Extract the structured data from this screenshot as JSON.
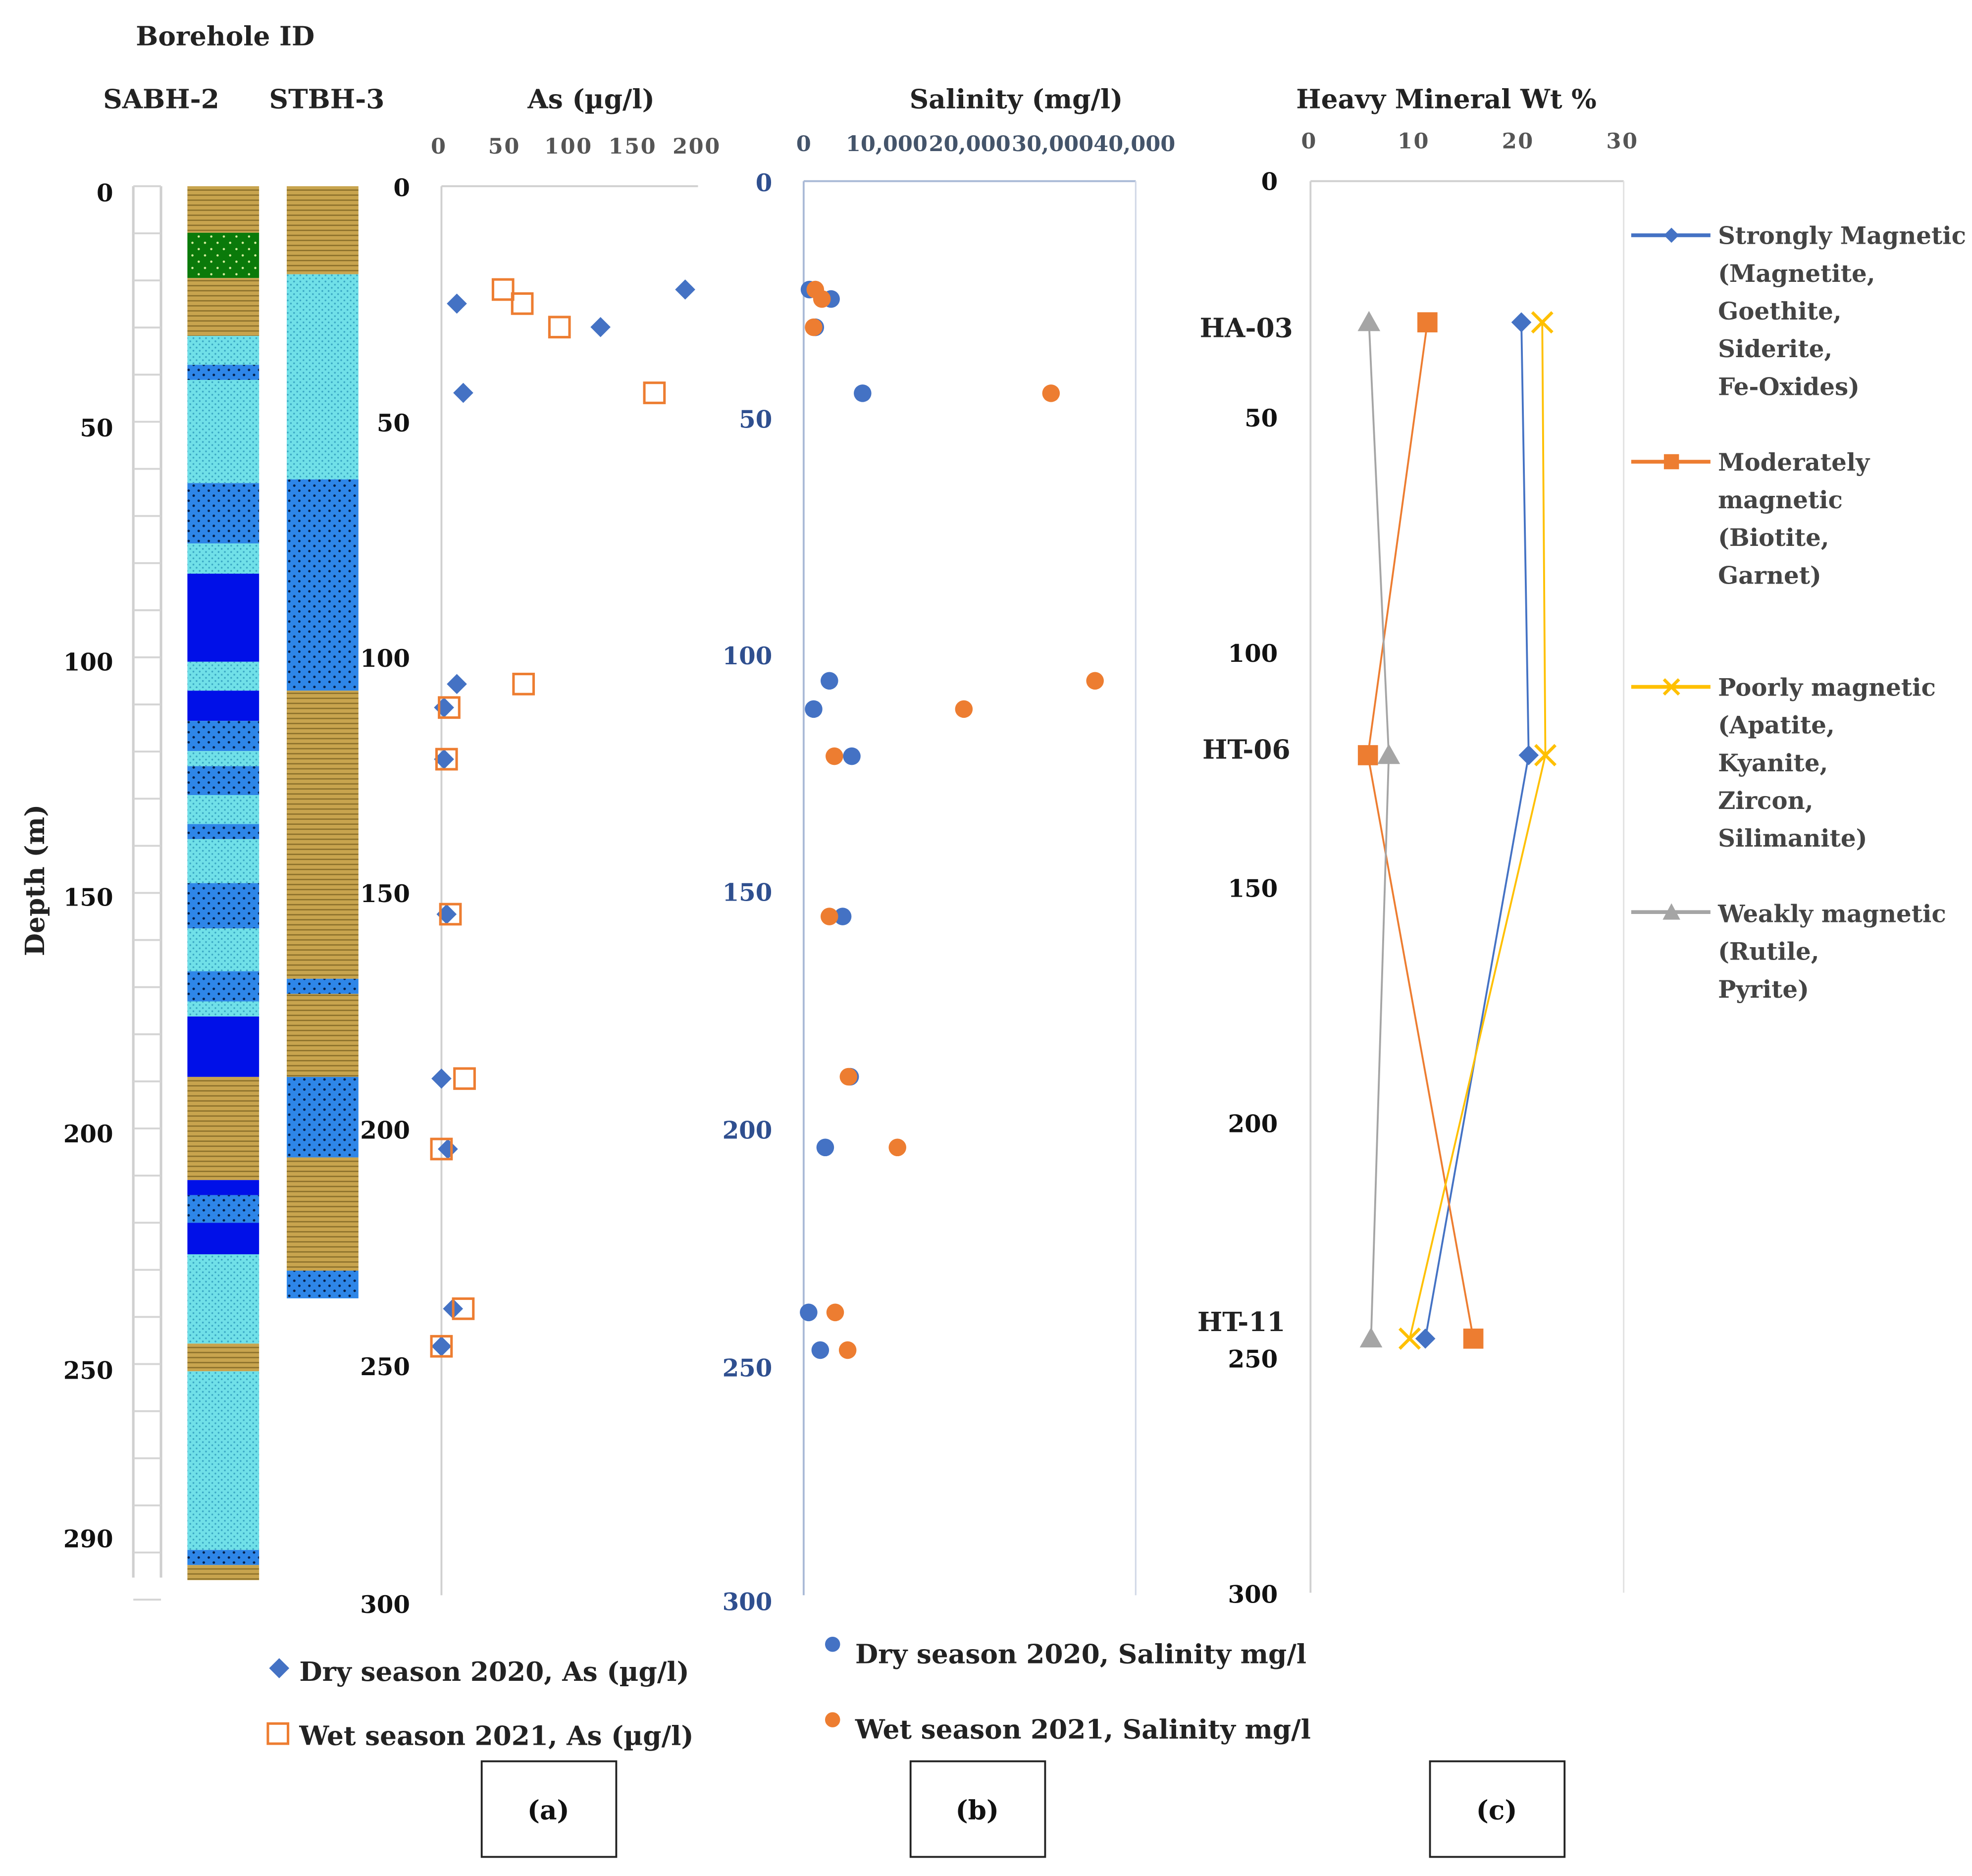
{
  "header": {
    "borehole_label": "Borehole ID",
    "depth_label": "Depth (m)"
  },
  "boreholes": [
    {
      "name": "SABH-2"
    },
    {
      "name": "STBH-3"
    }
  ],
  "strata_legend": {
    "fine_sand": "#70e0e8",
    "medium_sand": "#2e86e8",
    "coarse_sand": "#0010e8",
    "clay_silt": "#c8a44e",
    "peat_organic": "#0a7a0a"
  },
  "borehole_depth_ticks": [
    "0",
    "50",
    "100",
    "150",
    "200",
    "250",
    "290"
  ],
  "panel_labels": [
    "(a)",
    "(b)",
    "(c)"
  ],
  "chart_data": [
    {
      "id": "a",
      "type": "scatter",
      "title": "As (µg/l)",
      "xlabel": "As (µg/l)",
      "ylabel": "Depth (m)",
      "xlim": [
        0,
        200
      ],
      "ylim": [
        300,
        0
      ],
      "x_ticks": [
        "0",
        "50",
        "100",
        "150",
        "200"
      ],
      "y_ticks": [
        "0",
        "50",
        "100",
        "150",
        "200",
        "250",
        "300"
      ],
      "legend_position": "bottom",
      "series": [
        {
          "name": "Dry season 2020, As (µg/l)",
          "marker": "diamond",
          "color": "#4472c4",
          "points": [
            [
              190,
              22
            ],
            [
              12,
              25
            ],
            [
              124,
              30
            ],
            [
              17,
              44
            ],
            [
              12,
              106
            ],
            [
              2,
              111
            ],
            [
              2,
              122
            ],
            [
              4,
              155
            ],
            [
              0,
              190
            ],
            [
              5,
              205
            ],
            [
              9,
              239
            ],
            [
              0,
              247
            ]
          ]
        },
        {
          "name": "Wet season 2021, As (µg/l)",
          "marker": "square-open",
          "color": "#ed7d31",
          "points": [
            [
              48,
              22
            ],
            [
              63,
              25
            ],
            [
              92,
              30
            ],
            [
              166,
              44
            ],
            [
              64,
              106
            ],
            [
              6,
              111
            ],
            [
              4,
              122
            ],
            [
              7,
              155
            ],
            [
              18,
              190
            ],
            [
              0,
              205
            ],
            [
              17,
              239
            ],
            [
              0,
              247
            ]
          ]
        }
      ]
    },
    {
      "id": "b",
      "type": "scatter",
      "title": "Salinity (mg/l)",
      "xlabel": "Salinity (mg/l)",
      "ylabel": "Depth (m)",
      "xlim": [
        0,
        40000
      ],
      "ylim": [
        300,
        0
      ],
      "x_ticks": [
        "0",
        "10,000",
        "20,000",
        "30,000",
        "40,000"
      ],
      "y_ticks": [
        "0",
        "50",
        "100",
        "150",
        "200",
        "250",
        "300"
      ],
      "legend_position": "bottom",
      "series": [
        {
          "name": "Dry season 2020, Salinity mg/l",
          "marker": "circle",
          "color": "#4472c4",
          "points": [
            [
              700,
              23
            ],
            [
              3300,
              25
            ],
            [
              1400,
              31
            ],
            [
              7100,
              45
            ],
            [
              3100,
              106
            ],
            [
              1200,
              112
            ],
            [
              5800,
              122
            ],
            [
              4700,
              156
            ],
            [
              5600,
              190
            ],
            [
              2600,
              205
            ],
            [
              600,
              240
            ],
            [
              2000,
              248
            ]
          ]
        },
        {
          "name": "Wet season 2021, Salinity mg/l",
          "marker": "circle",
          "color": "#ed7d31",
          "points": [
            [
              1400,
              23
            ],
            [
              2200,
              25
            ],
            [
              1200,
              31
            ],
            [
              29800,
              45
            ],
            [
              35100,
              106
            ],
            [
              19300,
              112
            ],
            [
              3700,
              122
            ],
            [
              3100,
              156
            ],
            [
              5400,
              190
            ],
            [
              11300,
              205
            ],
            [
              3800,
              240
            ],
            [
              5300,
              248
            ]
          ]
        }
      ]
    },
    {
      "id": "c",
      "type": "line",
      "title": "Heavy Mineral Wt %",
      "xlabel": "Heavy Mineral Wt %",
      "ylabel": "Depth (m)",
      "xlim": [
        0,
        30
      ],
      "ylim": [
        300,
        0
      ],
      "x_ticks": [
        "0",
        "10",
        "20",
        "30"
      ],
      "y_ticks": [
        "0",
        "50",
        "100",
        "150",
        "200",
        "250",
        "300"
      ],
      "legend_position": "right",
      "sample_labels": [
        {
          "name": "HA-03",
          "depth": 30
        },
        {
          "name": "HT-06",
          "depth": 122
        },
        {
          "name": "HT-11",
          "depth": 246
        }
      ],
      "series": [
        {
          "name": "Strongly Magnetic (Magnetite, Goethite, Siderite, Fe-Oxides)",
          "legend_lines": [
            "Strongly Magnetic",
            "(Magnetite,",
            "Goethite,",
            "Siderite,",
            "Fe-Oxides)"
          ],
          "marker": "diamond",
          "color": "#4472c4",
          "points": [
            [
              20.2,
              30
            ],
            [
              20.9,
              122
            ],
            [
              11.0,
              246
            ]
          ]
        },
        {
          "name": "Moderately magnetic (Biotite, Garnet)",
          "legend_lines": [
            "Moderately",
            "magnetic",
            "(Biotite,",
            "Garnet)"
          ],
          "marker": "square",
          "color": "#ed7d31",
          "points": [
            [
              11.2,
              30
            ],
            [
              5.5,
              122
            ],
            [
              15.6,
              246
            ]
          ]
        },
        {
          "name": "Poorly magnetic (Apatite, Kyanite, Zircon, Silimanite)",
          "legend_lines": [
            "Poorly magnetic",
            "(Apatite,",
            "Kyanite,",
            "Zircon,",
            "Silimanite)"
          ],
          "marker": "x",
          "color": "#ffc000",
          "points": [
            [
              22.2,
              30
            ],
            [
              22.5,
              122
            ],
            [
              9.5,
              246
            ]
          ]
        },
        {
          "name": "Weakly magnetic (Rutile, Pyrite)",
          "legend_lines": [
            "Weakly magnetic",
            "(Rutile,",
            "Pyrite)"
          ],
          "marker": "triangle",
          "color": "#a5a5a5",
          "points": [
            [
              5.6,
              30
            ],
            [
              7.5,
              122
            ],
            [
              5.8,
              246
            ]
          ]
        }
      ]
    }
  ]
}
